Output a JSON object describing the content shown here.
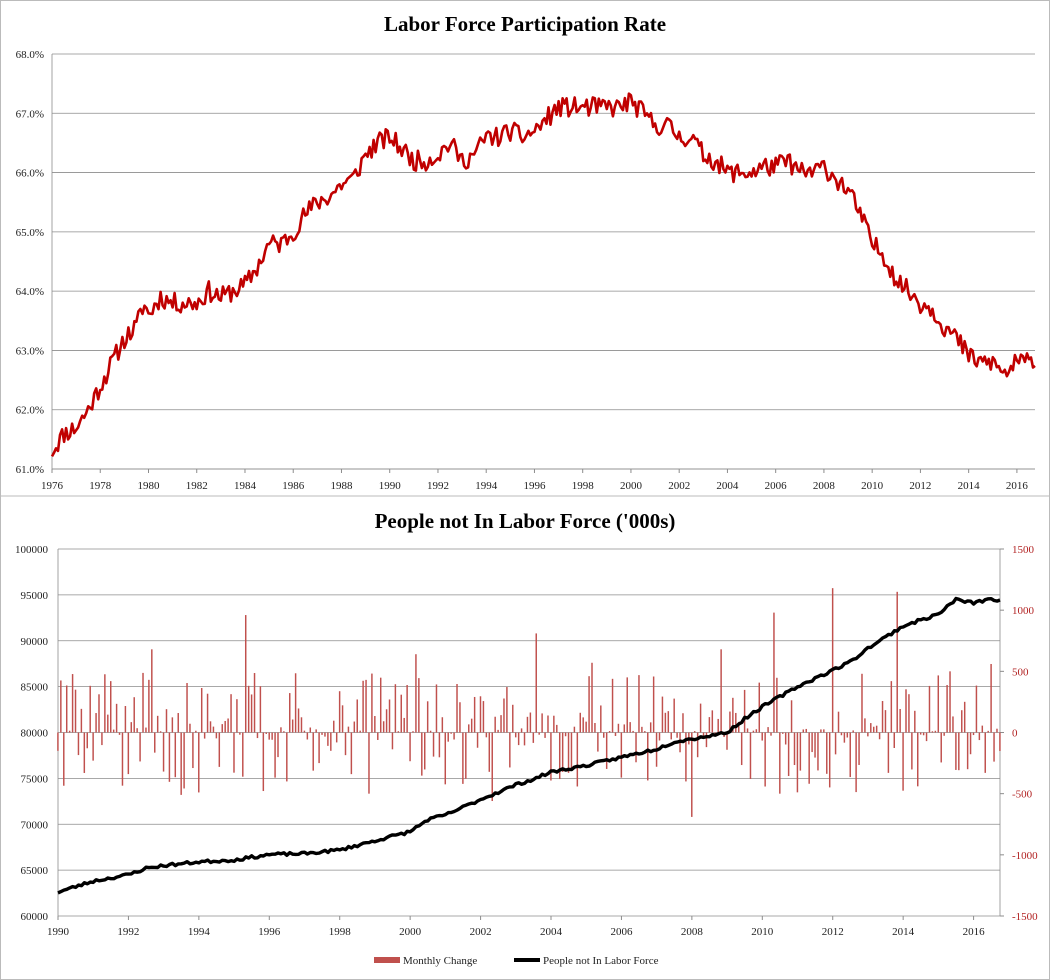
{
  "chart_data": [
    {
      "type": "line",
      "title": "Labor Force Participation Rate",
      "xlabel": "",
      "ylabel": "",
      "xlim": [
        1976,
        2016.75
      ],
      "ylim": [
        61,
        68
      ],
      "y_ticks": [
        "61.0%",
        "62.0%",
        "63.0%",
        "64.0%",
        "65.0%",
        "66.0%",
        "67.0%",
        "68.0%"
      ],
      "x_ticks": [
        "1976",
        "1978",
        "1980",
        "1982",
        "1984",
        "1986",
        "1988",
        "1990",
        "1992",
        "1994",
        "1996",
        "1998",
        "2000",
        "2002",
        "2004",
        "2006",
        "2008",
        "2010",
        "2012",
        "2014",
        "2016"
      ],
      "grid": true,
      "series": [
        {
          "color": "#c00000",
          "points": [
            [
              1976.0,
              61.3
            ],
            [
              1976.5,
              61.6
            ],
            [
              1977.0,
              61.7
            ],
            [
              1977.5,
              62.0
            ],
            [
              1978.0,
              62.4
            ],
            [
              1978.5,
              62.8
            ],
            [
              1979.0,
              63.2
            ],
            [
              1979.5,
              63.4
            ],
            [
              1979.8,
              63.8
            ],
            [
              1980.0,
              63.6
            ],
            [
              1980.5,
              63.9
            ],
            [
              1981.0,
              63.8
            ],
            [
              1981.5,
              63.8
            ],
            [
              1982.0,
              63.8
            ],
            [
              1982.5,
              64.0
            ],
            [
              1983.0,
              63.9
            ],
            [
              1983.5,
              64.0
            ],
            [
              1984.0,
              64.1
            ],
            [
              1984.5,
              64.4
            ],
            [
              1985.0,
              64.8
            ],
            [
              1985.5,
              64.8
            ],
            [
              1986.0,
              65.0
            ],
            [
              1986.5,
              65.3
            ],
            [
              1987.0,
              65.5
            ],
            [
              1987.5,
              65.6
            ],
            [
              1988.0,
              65.8
            ],
            [
              1988.5,
              65.9
            ],
            [
              1989.0,
              66.3
            ],
            [
              1989.5,
              66.5
            ],
            [
              1990.0,
              66.6
            ],
            [
              1990.5,
              66.4
            ],
            [
              1991.0,
              66.2
            ],
            [
              1991.5,
              66.2
            ],
            [
              1992.0,
              66.3
            ],
            [
              1992.5,
              66.5
            ],
            [
              1993.0,
              66.2
            ],
            [
              1993.5,
              66.3
            ],
            [
              1994.0,
              66.6
            ],
            [
              1994.5,
              66.6
            ],
            [
              1995.0,
              66.7
            ],
            [
              1995.5,
              66.6
            ],
            [
              1996.0,
              66.7
            ],
            [
              1996.5,
              66.9
            ],
            [
              1997.0,
              67.1
            ],
            [
              1997.5,
              67.1
            ],
            [
              1998.0,
              67.1
            ],
            [
              1998.5,
              67.1
            ],
            [
              1999.0,
              67.1
            ],
            [
              1999.5,
              67.1
            ],
            [
              2000.0,
              67.2
            ],
            [
              2000.5,
              67.0
            ],
            [
              2001.0,
              66.8
            ],
            [
              2001.5,
              66.8
            ],
            [
              2002.0,
              66.6
            ],
            [
              2002.5,
              66.6
            ],
            [
              2003.0,
              66.3
            ],
            [
              2003.5,
              66.2
            ],
            [
              2004.0,
              66.0
            ],
            [
              2004.5,
              66.0
            ],
            [
              2005.0,
              66.0
            ],
            [
              2005.5,
              66.1
            ],
            [
              2006.0,
              66.1
            ],
            [
              2006.5,
              66.2
            ],
            [
              2007.0,
              66.0
            ],
            [
              2007.5,
              66.0
            ],
            [
              2008.0,
              66.1
            ],
            [
              2008.5,
              65.9
            ],
            [
              2009.0,
              65.7
            ],
            [
              2009.5,
              65.3
            ],
            [
              2010.0,
              64.8
            ],
            [
              2010.5,
              64.6
            ],
            [
              2011.0,
              64.2
            ],
            [
              2011.5,
              64.0
            ],
            [
              2012.0,
              63.8
            ],
            [
              2012.5,
              63.7
            ],
            [
              2013.0,
              63.4
            ],
            [
              2013.5,
              63.2
            ],
            [
              2014.0,
              62.9
            ],
            [
              2014.5,
              62.8
            ],
            [
              2015.0,
              62.8
            ],
            [
              2015.5,
              62.6
            ],
            [
              2016.0,
              62.8
            ],
            [
              2016.5,
              62.8
            ],
            [
              2016.75,
              62.9
            ]
          ]
        }
      ]
    },
    {
      "type": "bar+line",
      "title": "People not In Labor Force ('000s)",
      "xlabel": "",
      "ylabel": "",
      "xlim": [
        1990,
        2016.75
      ],
      "ylim_left": [
        60000,
        100000
      ],
      "ylim_right": [
        -1500,
        1500
      ],
      "y_ticks_left": [
        "60000",
        "65000",
        "70000",
        "75000",
        "80000",
        "85000",
        "90000",
        "95000",
        "100000"
      ],
      "y_ticks_right": [
        "-1500",
        "-1000",
        "-500",
        "0",
        "500",
        "1000",
        "1500"
      ],
      "x_ticks": [
        "1990",
        "1992",
        "1994",
        "1996",
        "1998",
        "2000",
        "2002",
        "2004",
        "2006",
        "2008",
        "2010",
        "2012",
        "2014",
        "2016"
      ],
      "grid": true,
      "legend": {
        "position": "bottom-center",
        "entries": [
          "Monthly Change",
          "People not In Labor Force"
        ]
      },
      "series": [
        {
          "name": "People not In Labor Force",
          "axis": "left",
          "color": "#000000",
          "points": [
            [
              1990.0,
              62600
            ],
            [
              1991.0,
              63800
            ],
            [
              1992.0,
              64500
            ],
            [
              1992.5,
              65200
            ],
            [
              1993.0,
              65500
            ],
            [
              1994.0,
              65900
            ],
            [
              1995.0,
              66100
            ],
            [
              1996.0,
              66700
            ],
            [
              1997.0,
              66800
            ],
            [
              1998.0,
              67200
            ],
            [
              1999.0,
              68200
            ],
            [
              2000.0,
              69200
            ],
            [
              2000.5,
              70500
            ],
            [
              2001.0,
              71000
            ],
            [
              2002.0,
              72700
            ],
            [
              2003.0,
              74300
            ],
            [
              2003.5,
              74900
            ],
            [
              2004.0,
              75700
            ],
            [
              2005.0,
              76400
            ],
            [
              2006.0,
              77300
            ],
            [
              2007.0,
              78200
            ],
            [
              2007.5,
              79000
            ],
            [
              2008.0,
              79300
            ],
            [
              2009.0,
              80000
            ],
            [
              2009.5,
              81500
            ],
            [
              2010.0,
              82800
            ],
            [
              2011.0,
              85000
            ],
            [
              2012.0,
              86800
            ],
            [
              2012.5,
              87700
            ],
            [
              2013.0,
              89200
            ],
            [
              2014.0,
              91600
            ],
            [
              2015.0,
              92900
            ],
            [
              2015.5,
              94500
            ],
            [
              2016.0,
              94100
            ],
            [
              2016.5,
              94600
            ],
            [
              2016.75,
              94300
            ]
          ]
        },
        {
          "name": "Monthly Change",
          "axis": "right",
          "color": "#c0504d",
          "seed": 7,
          "points": [
            [
              1990.0,
              -150
            ],
            [
              1990.5,
              350
            ],
            [
              1991.0,
              -230
            ],
            [
              1991.5,
              420
            ],
            [
              1992.0,
              -340
            ],
            [
              1992.7,
              680
            ],
            [
              1993.5,
              -510
            ],
            [
              1994.0,
              -490
            ],
            [
              1995.3,
              960
            ],
            [
              1996.5,
              -400
            ],
            [
              1997.4,
              -250
            ],
            [
              1998.5,
              270
            ],
            [
              1998.8,
              -500
            ],
            [
              2000.2,
              640
            ],
            [
              2001.5,
              -420
            ],
            [
              2002.3,
              -560
            ],
            [
              2003.6,
              810
            ],
            [
              2004.5,
              -330
            ],
            [
              2005.2,
              570
            ],
            [
              2007.0,
              -280
            ],
            [
              2007.8,
              -400
            ],
            [
              2008.0,
              -690
            ],
            [
              2008.8,
              680
            ],
            [
              2009.7,
              -380
            ],
            [
              2010.3,
              980
            ],
            [
              2010.5,
              -500
            ],
            [
              2011.6,
              -310
            ],
            [
              2012.0,
              1180
            ],
            [
              2012.8,
              480
            ],
            [
              2013.6,
              -330
            ],
            [
              2013.8,
              1150
            ],
            [
              2014.4,
              -440
            ],
            [
              2015.3,
              500
            ],
            [
              2015.8,
              -300
            ],
            [
              2016.3,
              -330
            ],
            [
              2016.5,
              560
            ]
          ]
        }
      ]
    }
  ]
}
